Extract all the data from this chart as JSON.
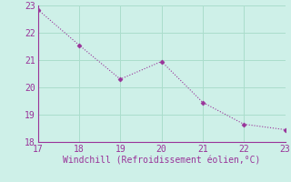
{
  "x": [
    17,
    18,
    19,
    20,
    21,
    22,
    23
  ],
  "y": [
    22.85,
    21.55,
    20.3,
    20.95,
    19.45,
    18.65,
    18.45
  ],
  "xlim": [
    17,
    23
  ],
  "ylim": [
    18,
    23
  ],
  "xticks": [
    17,
    18,
    19,
    20,
    21,
    22,
    23
  ],
  "yticks": [
    18,
    19,
    20,
    21,
    22,
    23
  ],
  "xlabel": "Windchill (Refroidissement éolien,°C)",
  "line_color": "#993399",
  "marker": "D",
  "bg_color": "#cef0e8",
  "grid_color": "#aaddcc",
  "tick_color": "#993399",
  "label_color": "#993399",
  "marker_size": 2.5,
  "line_width": 0.8,
  "spine_color": "#993399",
  "font_size_ticks": 7,
  "font_size_xlabel": 7
}
